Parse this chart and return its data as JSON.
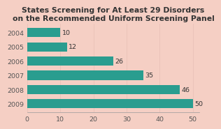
{
  "title": "States Screening for At Least 29 Disorders\non the Recommended Uniform Screening Panel",
  "years": [
    "2004",
    "2005",
    "2006",
    "2007",
    "2008",
    "2009"
  ],
  "values": [
    10,
    12,
    26,
    35,
    46,
    50
  ],
  "bar_color": "#2a9d8f",
  "background_color": "#f5cfc4",
  "title_color": "#333333",
  "label_color": "#333333",
  "tick_color": "#555555",
  "grid_color": "#e8bfb5",
  "xlim": [
    0,
    52
  ],
  "xticks": [
    0,
    10,
    20,
    30,
    40,
    50
  ],
  "title_fontsize": 7.8,
  "label_fontsize": 6.8,
  "bar_height": 0.65
}
